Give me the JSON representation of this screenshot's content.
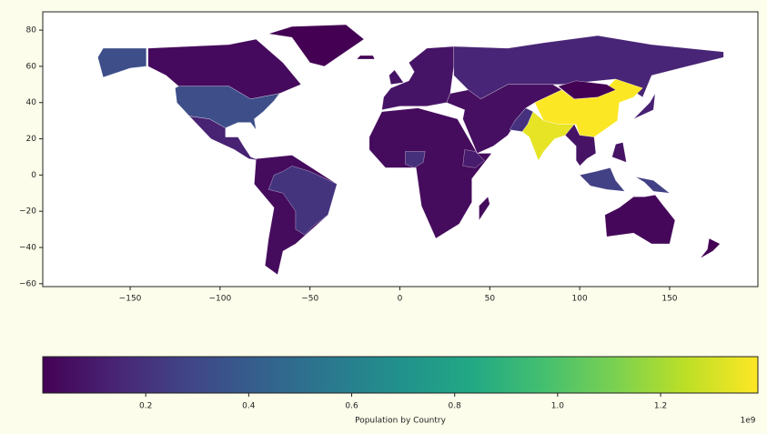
{
  "chart_data": {
    "type": "choropleth",
    "values": [
      0.0367,
      0.327,
      0.129,
      5.63e-05,
      0.0437,
      0.209,
      0.038,
      0.191,
      0.105,
      0.0743,
      0.0117,
      0.144,
      0.055,
      1.386,
      0.00307,
      1.339,
      0.197,
      0.073,
      0.264,
      0.127,
      0.0246,
      0.0048
    ],
    "xlim": [
      -198.6,
      199.1
    ],
    "ylim": [
      -61.6,
      90.1
    ],
    "xticks": [
      {
        "value": -150,
        "label": "−150"
      },
      {
        "value": -100,
        "label": "−100"
      },
      {
        "value": -50,
        "label": "−50"
      },
      0,
      50,
      100,
      150
    ],
    "yticks": [
      {
        "value": -60,
        "label": "−60"
      },
      {
        "value": -40,
        "label": "−40"
      },
      {
        "value": -20,
        "label": "−20"
      },
      0,
      20,
      40,
      60,
      80
    ],
    "colormap": "viridis",
    "colorbar": {
      "label": "Population by Country",
      "lim": [
        0,
        1.389
      ],
      "ticks": [
        0.2,
        0.4,
        0.6,
        0.8,
        1.0,
        1.2
      ],
      "offset_label": "1e9"
    }
  }
}
